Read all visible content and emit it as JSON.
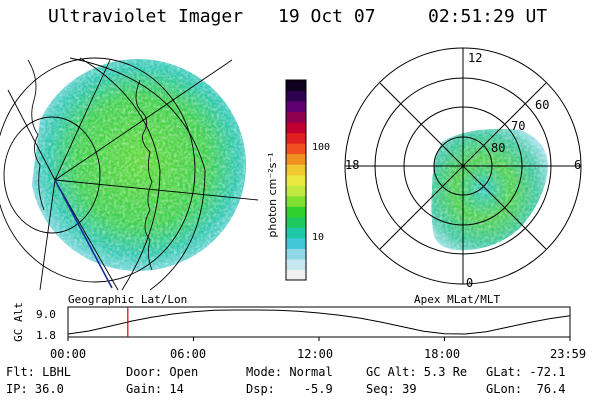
{
  "header": {
    "instrument": "Ultraviolet Imager",
    "date": "19 Oct 07",
    "time": "02:51:29 UT"
  },
  "colorbar": {
    "unit_label": "photon cm⁻²s⁻¹",
    "ticks": [
      "100",
      "10"
    ],
    "colors": [
      "#f0f0f0",
      "#c8e8f0",
      "#90d8e8",
      "#40c8d8",
      "#20c8a8",
      "#20c860",
      "#30d030",
      "#80e030",
      "#c0e840",
      "#e8e840",
      "#f0c830",
      "#f09020",
      "#f05020",
      "#e02020",
      "#c00030",
      "#900050",
      "#600070",
      "#300050",
      "#100020"
    ]
  },
  "left_panel": {
    "caption": "Geographic Lat/Lon"
  },
  "right_panel": {
    "caption": "Apex MLat/MLT",
    "mlt_labels": {
      "top": "12",
      "bottom": "0",
      "left": "18",
      "right": "6"
    },
    "lat_labels": [
      "60",
      "70",
      "80"
    ]
  },
  "altitude_plot": {
    "ylabel": "GC Alt",
    "y_ticks": [
      "9.0",
      "1.8"
    ],
    "x_ticks": [
      "00:00",
      "06:00",
      "12:00",
      "18:00",
      "23:59"
    ],
    "curve": [
      [
        0,
        1.8
      ],
      [
        1,
        2.7
      ],
      [
        2,
        4.1
      ],
      [
        3,
        5.6
      ],
      [
        4,
        6.8
      ],
      [
        5,
        7.8
      ],
      [
        6,
        8.5
      ],
      [
        7,
        8.9
      ],
      [
        8,
        9.0
      ],
      [
        9,
        9.0
      ],
      [
        10,
        8.9
      ],
      [
        11,
        8.6
      ],
      [
        12,
        8.1
      ],
      [
        13,
        7.4
      ],
      [
        14,
        6.5
      ],
      [
        15,
        5.3
      ],
      [
        16,
        4.0
      ],
      [
        17,
        2.6
      ],
      [
        18,
        1.9
      ],
      [
        19,
        1.8
      ],
      [
        20,
        2.5
      ],
      [
        21,
        3.8
      ],
      [
        22,
        5.2
      ],
      [
        23,
        6.4
      ],
      [
        24,
        7.3
      ]
    ],
    "current_time_hours": 2.86,
    "marker_color": "#cc0000"
  },
  "info": {
    "flt": "Flt: LBHL",
    "door": "Door: Open",
    "mode": "Mode: Normal",
    "gc_alt": "GC Alt: 5.3 Re",
    "glat": "GLat: -72.1",
    "ip": "IP: 36.0",
    "gain": "Gain: 14",
    "dsp": "Dsp:    -5.9",
    "seq": "Seq: 39",
    "glon": "GLon:  76.4"
  }
}
